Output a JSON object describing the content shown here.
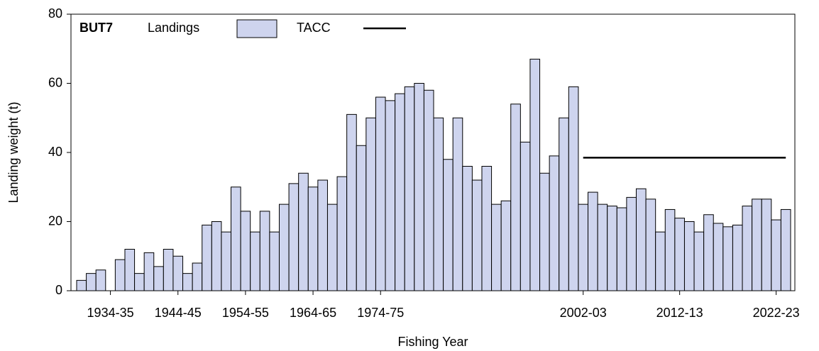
{
  "chart_data": {
    "type": "bar",
    "title": "BUT7",
    "x_label": "Fishing Year",
    "y_label": "Landing weight (t)",
    "categories": [
      null,
      null,
      null,
      "1934-35",
      null,
      null,
      null,
      null,
      null,
      null,
      "1944-45",
      null,
      null,
      null,
      null,
      null,
      null,
      "1954-55",
      null,
      null,
      null,
      null,
      null,
      null,
      "1964-65",
      null,
      null,
      null,
      null,
      null,
      null,
      "1974-75",
      null,
      null,
      null,
      null,
      null,
      null,
      null,
      null,
      null,
      null,
      null,
      null,
      null,
      null,
      null,
      null,
      null,
      null,
      null,
      null,
      "2002-03",
      null,
      null,
      null,
      null,
      null,
      null,
      null,
      null,
      null,
      "2012-13",
      null,
      null,
      null,
      null,
      null,
      null,
      null,
      null,
      null,
      "2022-23",
      null
    ],
    "series": [
      {
        "name": "Landings",
        "color": "#ced4ee",
        "values": [
          3,
          5,
          6,
          0,
          9,
          12,
          5,
          11,
          7,
          12,
          10,
          5,
          8,
          19,
          20,
          17,
          30,
          23,
          17,
          23,
          17,
          25,
          31,
          34,
          30,
          32,
          25,
          33,
          51,
          42,
          50,
          56,
          55,
          57,
          59,
          60,
          58,
          50,
          38,
          50,
          36,
          32,
          36,
          25,
          26,
          54,
          43,
          67,
          34,
          39,
          50,
          59,
          25,
          28.5,
          25,
          24.5,
          24,
          27,
          29.5,
          26.5,
          17,
          23.5,
          21,
          20,
          17,
          22,
          19.5,
          18.5,
          19,
          24.5,
          26.5,
          26.5,
          20.5,
          23.5
        ]
      },
      {
        "name": "TACC",
        "type": "line",
        "color": "#000000",
        "values": [
          null,
          null,
          null,
          null,
          null,
          null,
          null,
          null,
          null,
          null,
          null,
          null,
          null,
          null,
          null,
          null,
          null,
          null,
          null,
          null,
          null,
          null,
          null,
          null,
          null,
          null,
          null,
          null,
          null,
          null,
          null,
          null,
          null,
          null,
          null,
          null,
          null,
          null,
          null,
          null,
          null,
          null,
          null,
          null,
          null,
          null,
          null,
          null,
          null,
          null,
          null,
          null,
          38.5,
          38.5,
          38.5,
          38.5,
          38.5,
          38.5,
          38.5,
          38.5,
          38.5,
          38.5,
          38.5,
          38.5,
          38.5,
          38.5,
          38.5,
          38.5,
          38.5,
          38.5,
          38.5,
          38.5,
          38.5,
          38.5
        ]
      }
    ],
    "ylim": [
      0,
      80
    ],
    "yticks": [
      0,
      20,
      40,
      60,
      80
    ]
  }
}
